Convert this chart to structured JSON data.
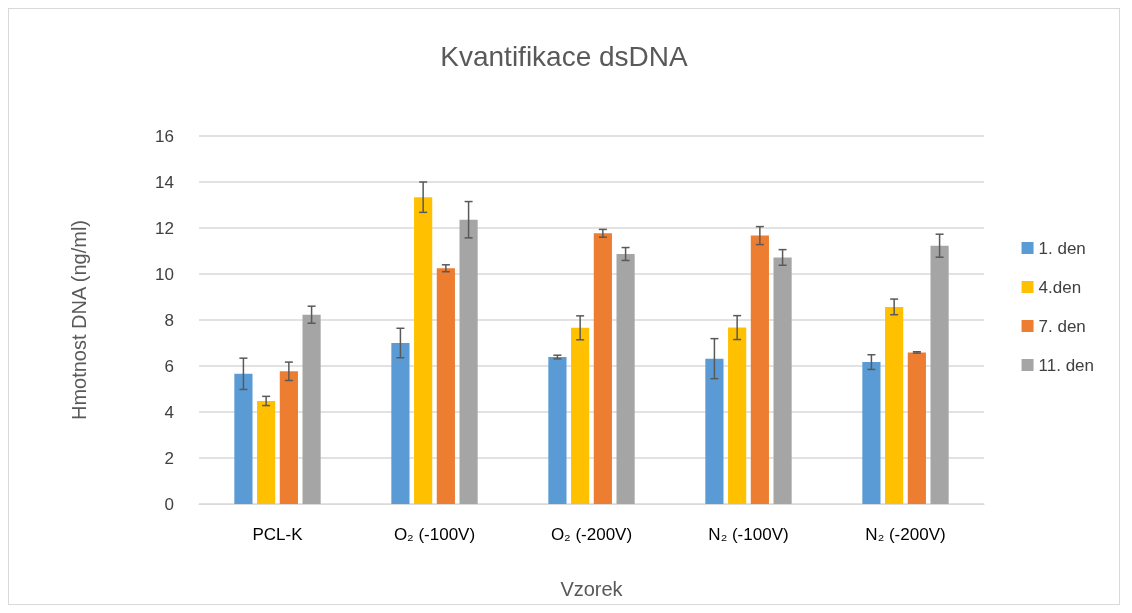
{
  "chart_data": {
    "type": "bar",
    "title": "Kvantifikace dsDNA",
    "xlabel": "Vzorek",
    "ylabel": "Hmotnost DNA (ng/ml)",
    "categories": [
      "PCL-K",
      "O₂ (-100V)",
      "O₂ (-200V)",
      "N₂ (-100V)",
      "N₂ (-200V)"
    ],
    "series": [
      {
        "name": "1. den",
        "color": "#5b9bd5",
        "values": [
          5.66,
          7.0,
          6.39,
          6.32,
          6.17
        ],
        "errors": [
          0.68,
          0.64,
          0.08,
          0.87,
          0.32
        ]
      },
      {
        "name": "4.den",
        "color": "#ffc000",
        "values": [
          4.48,
          13.34,
          7.66,
          7.67,
          8.57
        ],
        "errors": [
          0.2,
          0.66,
          0.52,
          0.52,
          0.34
        ]
      },
      {
        "name": "7. den",
        "color": "#ed7d31",
        "values": [
          5.77,
          10.25,
          11.77,
          11.67,
          6.59
        ],
        "errors": [
          0.4,
          0.15,
          0.17,
          0.39,
          0.03
        ]
      },
      {
        "name": "11. den",
        "color": "#a5a5a5",
        "values": [
          8.23,
          12.36,
          10.87,
          10.72,
          11.23
        ],
        "errors": [
          0.37,
          0.79,
          0.28,
          0.34,
          0.5
        ]
      }
    ],
    "ylim": [
      0,
      16
    ],
    "yticks": [
      0,
      2,
      4,
      6,
      8,
      10,
      12,
      14,
      16
    ],
    "grid": "y",
    "legend": "right"
  }
}
